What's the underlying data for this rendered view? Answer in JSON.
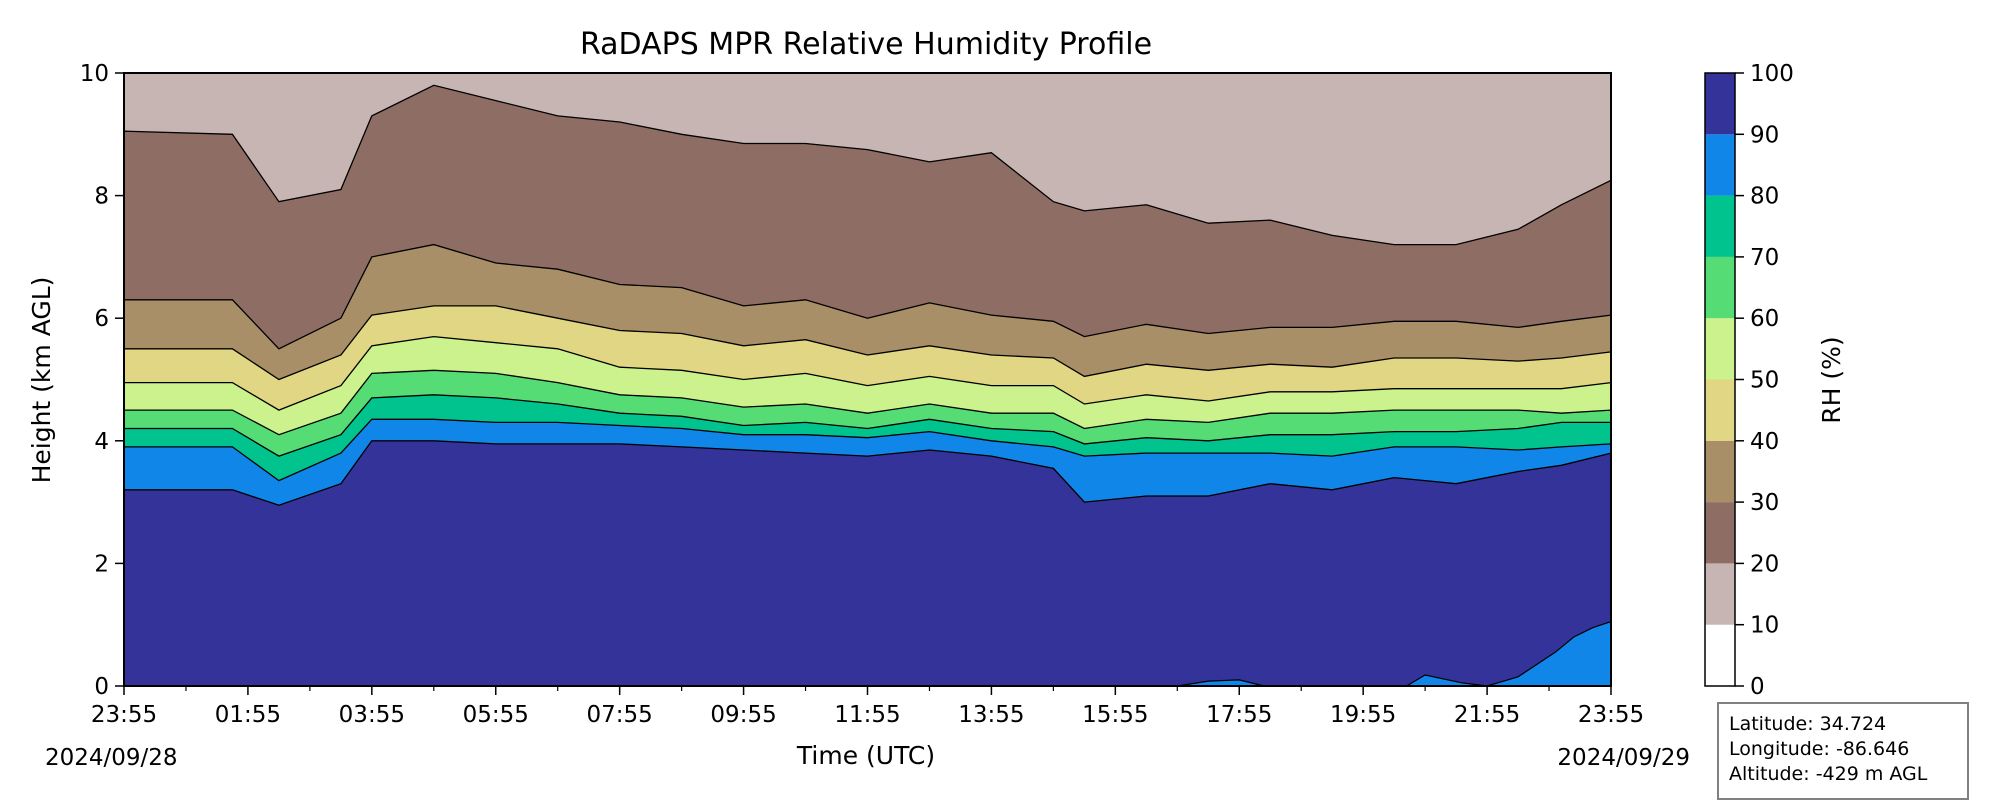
{
  "chart_data": {
    "type": "area",
    "subtype": "filled-contour",
    "title": "RaDAPS MPR Relative Humidity Profile",
    "xlabel": "Time (UTC)",
    "ylabel": "Height (km AGL)",
    "colorbar_label": "RH (%)",
    "x_ticks": [
      "23:55",
      "01:55",
      "03:55",
      "05:55",
      "07:55",
      "09:55",
      "11:55",
      "13:55",
      "15:55",
      "17:55",
      "19:55",
      "21:55",
      "23:55"
    ],
    "x_range_hours": [
      0,
      24
    ],
    "start_date": "2024/09/28",
    "end_date": "2024/09/29",
    "y_ticks": [
      "0",
      "2",
      "4",
      "6",
      "8",
      "10"
    ],
    "ylim": [
      0,
      10
    ],
    "levels": [
      0,
      10,
      20,
      30,
      40,
      50,
      60,
      70,
      80,
      90,
      100
    ],
    "colorbar_ticks": [
      "0",
      "10",
      "20",
      "30",
      "40",
      "50",
      "60",
      "70",
      "80",
      "90",
      "100"
    ],
    "level_colors": [
      "#ffffff",
      "#c6b5b2",
      "#8e6e64",
      "#a88f67",
      "#e0d684",
      "#cbf28c",
      "#55dc75",
      "#00c38e",
      "#1086e8",
      "#333399"
    ],
    "boundary_times_hours": [
      0,
      1.75,
      2.5,
      3.5,
      4.0,
      5.0,
      6.0,
      7.0,
      8.0,
      9.0,
      10.0,
      11.0,
      12.0,
      13.0,
      14.0,
      15.0,
      15.5,
      16.5,
      17.5,
      18.5,
      19.5,
      20.5,
      21.5,
      22.5,
      23.2,
      24.0
    ],
    "boundaries_km": [
      {
        "rh": 90,
        "heights": [
          3.2,
          3.2,
          2.95,
          3.3,
          4.0,
          4.0,
          3.95,
          3.95,
          3.95,
          3.9,
          3.85,
          3.8,
          3.75,
          3.85,
          3.75,
          3.55,
          3.0,
          3.1,
          3.1,
          3.3,
          3.2,
          3.4,
          3.3,
          3.5,
          3.6,
          3.8
        ]
      },
      {
        "rh": 80,
        "heights": [
          3.9,
          3.9,
          3.35,
          3.8,
          4.35,
          4.35,
          4.3,
          4.3,
          4.25,
          4.2,
          4.1,
          4.1,
          4.05,
          4.15,
          4.0,
          3.9,
          3.75,
          3.8,
          3.8,
          3.8,
          3.75,
          3.9,
          3.9,
          3.85,
          3.9,
          3.95
        ]
      },
      {
        "rh": 70,
        "heights": [
          4.2,
          4.2,
          3.75,
          4.1,
          4.7,
          4.75,
          4.7,
          4.6,
          4.45,
          4.4,
          4.25,
          4.3,
          4.2,
          4.35,
          4.2,
          4.15,
          3.95,
          4.05,
          4.0,
          4.1,
          4.1,
          4.15,
          4.15,
          4.2,
          4.3,
          4.3
        ]
      },
      {
        "rh": 60,
        "heights": [
          4.5,
          4.5,
          4.1,
          4.45,
          5.1,
          5.15,
          5.1,
          4.95,
          4.75,
          4.7,
          4.55,
          4.6,
          4.45,
          4.6,
          4.45,
          4.45,
          4.2,
          4.35,
          4.3,
          4.45,
          4.45,
          4.5,
          4.5,
          4.5,
          4.45,
          4.5
        ]
      },
      {
        "rh": 50,
        "heights": [
          4.95,
          4.95,
          4.5,
          4.9,
          5.55,
          5.7,
          5.6,
          5.5,
          5.2,
          5.15,
          5.0,
          5.1,
          4.9,
          5.05,
          4.9,
          4.9,
          4.6,
          4.75,
          4.65,
          4.8,
          4.8,
          4.85,
          4.85,
          4.85,
          4.85,
          4.95
        ]
      },
      {
        "rh": 40,
        "heights": [
          5.5,
          5.5,
          5.0,
          5.4,
          6.05,
          6.2,
          6.2,
          6.0,
          5.8,
          5.75,
          5.55,
          5.65,
          5.4,
          5.55,
          5.4,
          5.35,
          5.05,
          5.25,
          5.15,
          5.25,
          5.2,
          5.35,
          5.35,
          5.3,
          5.35,
          5.45
        ]
      },
      {
        "rh": 30,
        "heights": [
          6.3,
          6.3,
          5.5,
          6.0,
          7.0,
          7.2,
          6.9,
          6.8,
          6.55,
          6.5,
          6.2,
          6.3,
          6.0,
          6.25,
          6.05,
          5.95,
          5.7,
          5.9,
          5.75,
          5.85,
          5.85,
          5.95,
          5.95,
          5.85,
          5.95,
          6.05
        ]
      },
      {
        "rh": 20,
        "heights": [
          9.05,
          9.0,
          7.9,
          8.1,
          9.3,
          9.8,
          9.55,
          9.3,
          9.2,
          9.0,
          8.85,
          8.85,
          8.75,
          8.55,
          8.7,
          7.9,
          7.75,
          7.85,
          7.55,
          7.6,
          7.35,
          7.2,
          7.2,
          7.45,
          7.85,
          8.25
        ]
      }
    ],
    "surface_patches": [
      {
        "rh": 90,
        "note": "thin high-RH layer near surface around 17:00-18:30",
        "times_hours": [
          17.0,
          17.5,
          18.0,
          18.4
        ],
        "heights": [
          0.0,
          0.08,
          0.1,
          0.0
        ]
      },
      {
        "rh": 90,
        "note": "surface layer growing toward end of period",
        "times_hours": [
          20.7,
          21.0,
          21.6,
          22.0,
          22.5,
          22.8,
          23.1,
          23.4,
          23.7,
          24.0
        ],
        "heights": [
          0.0,
          0.18,
          0.05,
          0.0,
          0.15,
          0.35,
          0.55,
          0.8,
          0.95,
          1.05
        ]
      }
    ]
  },
  "info": {
    "latitude": "Latitude: 34.724",
    "longitude": "Longitude: -86.646",
    "altitude": "Altitude: -429 m AGL"
  }
}
